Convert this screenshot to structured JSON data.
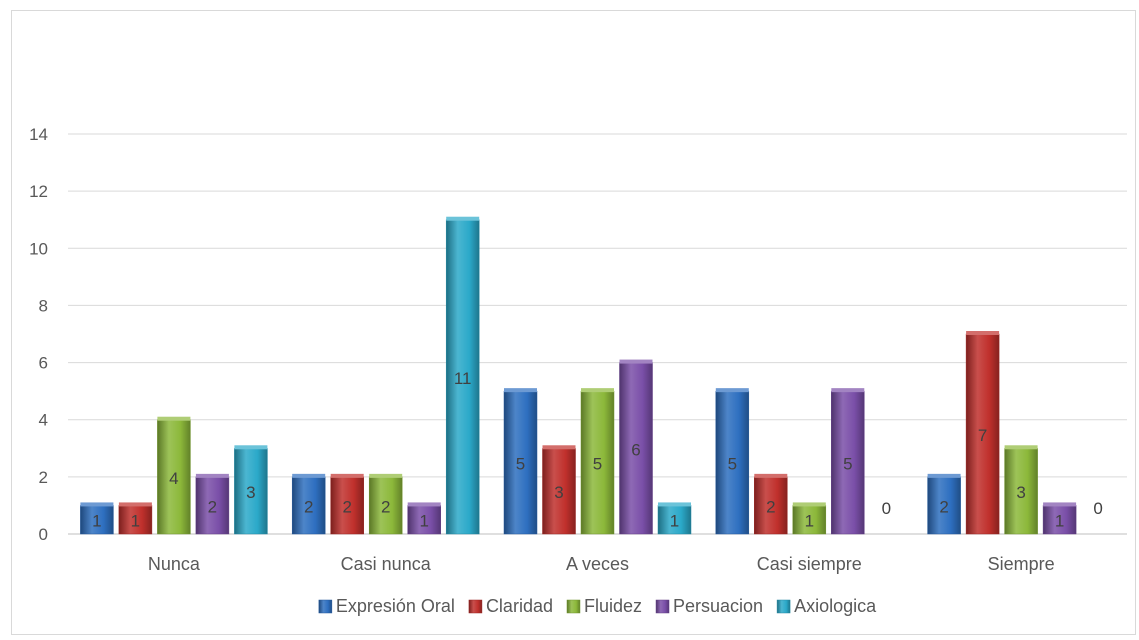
{
  "chart_data": {
    "type": "bar",
    "title": "",
    "xlabel": "",
    "ylabel": "",
    "categories": [
      "Nunca",
      "Casi nunca",
      "A veces",
      "Casi siempre",
      "Siempre"
    ],
    "ylim": [
      0,
      14
    ],
    "yticks": [
      0,
      2,
      4,
      6,
      8,
      10,
      12,
      14
    ],
    "grid": true,
    "legend_position": "bottom",
    "series": [
      {
        "name": "Expresión Oral",
        "values": [
          1,
          2,
          5,
          5,
          2
        ],
        "color": "#2E6FC0"
      },
      {
        "name": "Claridad",
        "values": [
          1,
          2,
          3,
          2,
          7
        ],
        "color": "#C0302C"
      },
      {
        "name": "Fluidez",
        "values": [
          4,
          2,
          5,
          1,
          3
        ],
        "color": "#8CB83A"
      },
      {
        "name": "Persuacion",
        "values": [
          2,
          1,
          6,
          5,
          1
        ],
        "color": "#7A4FA8"
      },
      {
        "name": "Axiologica",
        "values": [
          3,
          11,
          1,
          0,
          0
        ],
        "color": "#2BA9C9"
      }
    ]
  }
}
